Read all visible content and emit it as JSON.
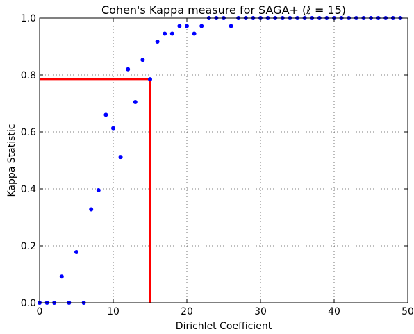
{
  "chart_data": {
    "type": "scatter",
    "title": "Cohen's Kappa measure for SAGA+ (ℓ = 15)",
    "xlabel": "Dirichlet Coefficient",
    "ylabel": "Kappa Statistic",
    "xlim": [
      0,
      50
    ],
    "ylim": [
      0,
      1.0
    ],
    "xticks": [
      "0",
      "10",
      "20",
      "30",
      "40",
      "50"
    ],
    "yticks": [
      "0.0",
      "0.2",
      "0.4",
      "0.6",
      "0.8",
      "1.0"
    ],
    "grid": true,
    "point_color": "#0000ff",
    "series": [
      {
        "x": [
          0,
          1,
          2,
          3,
          4,
          5,
          6,
          7,
          8,
          9,
          10,
          11,
          12,
          13,
          14,
          15,
          16,
          17,
          18,
          19,
          20,
          21,
          22,
          23,
          24,
          25,
          26,
          27,
          28,
          29,
          30,
          31,
          32,
          33,
          34,
          35,
          36,
          37,
          38,
          39,
          40,
          41,
          42,
          43,
          44,
          45,
          46,
          47,
          48,
          49
        ],
        "y": [
          0.0,
          0.0,
          0.0,
          0.092,
          0.0,
          0.178,
          0.0,
          0.328,
          0.395,
          0.66,
          0.613,
          0.512,
          0.82,
          0.705,
          0.853,
          0.785,
          0.917,
          0.945,
          0.945,
          0.972,
          0.972,
          0.945,
          0.972,
          1.0,
          1.0,
          1.0,
          0.972,
          1.0,
          1.0,
          1.0,
          1.0,
          1.0,
          1.0,
          1.0,
          1.0,
          1.0,
          1.0,
          1.0,
          1.0,
          1.0,
          1.0,
          1.0,
          1.0,
          1.0,
          1.0,
          1.0,
          1.0,
          1.0,
          1.0,
          1.0
        ]
      }
    ],
    "reference_lines": {
      "color": "#ff0000",
      "x": 15,
      "y": 0.785
    }
  }
}
